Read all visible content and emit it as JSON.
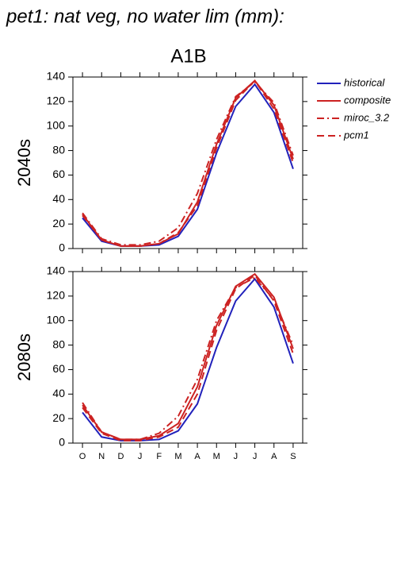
{
  "title": "pet1: nat veg, no water lim (mm):",
  "subtitle": "A1B",
  "chart_data": [
    {
      "type": "line",
      "row_label": "2040s",
      "ylim": [
        0,
        140
      ],
      "yticks": [
        0,
        20,
        40,
        60,
        80,
        100,
        120,
        140
      ],
      "series": [
        {
          "name": "historical",
          "color": "#2222bb",
          "dash": "solid",
          "values": [
            25,
            6,
            2,
            2,
            3,
            10,
            32,
            78,
            116,
            134,
            111,
            65
          ]
        },
        {
          "name": "composite",
          "color": "#cc2222",
          "dash": "solid",
          "values": [
            28,
            7,
            2,
            2,
            4,
            12,
            38,
            85,
            123,
            137,
            117,
            73
          ]
        },
        {
          "name": "miroc_3.2",
          "color": "#cc2222",
          "dash": "dashdot",
          "values": [
            29,
            8,
            3,
            3,
            6,
            17,
            45,
            89,
            124,
            136,
            119,
            76
          ]
        },
        {
          "name": "pcm1",
          "color": "#cc2222",
          "dash": "dashed",
          "values": [
            27,
            7,
            2,
            2,
            4,
            13,
            35,
            82,
            121,
            137,
            114,
            70
          ]
        }
      ]
    },
    {
      "type": "line",
      "row_label": "2080s",
      "categories": [
        "O",
        "N",
        "D",
        "J",
        "F",
        "M",
        "A",
        "M",
        "J",
        "J",
        "A",
        "S"
      ],
      "ylim": [
        0,
        140
      ],
      "yticks": [
        0,
        20,
        40,
        60,
        80,
        100,
        120,
        140
      ],
      "series": [
        {
          "color": "#2222bb",
          "dash": "solid",
          "values": [
            25,
            5,
            2,
            2,
            3,
            10,
            32,
            78,
            116,
            134,
            111,
            65
          ]
        },
        {
          "color": "#cc2222",
          "dash": "solid",
          "values": [
            31,
            9,
            3,
            3,
            6,
            16,
            46,
            96,
            128,
            138,
            119,
            77
          ]
        },
        {
          "color": "#cc2222",
          "dash": "dashdot",
          "values": [
            33,
            9,
            3,
            3,
            8,
            22,
            52,
            100,
            127,
            135,
            117,
            80
          ]
        },
        {
          "color": "#cc2222",
          "dash": "dashed",
          "values": [
            29,
            8,
            2,
            2,
            5,
            13,
            40,
            92,
            126,
            137,
            116,
            73
          ]
        }
      ]
    }
  ]
}
